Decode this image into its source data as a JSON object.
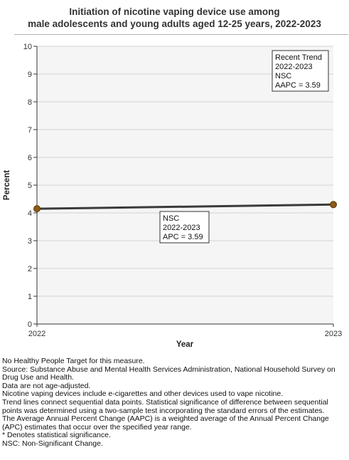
{
  "chart_data": {
    "type": "line",
    "title_line1": "Initiation of nicotine vaping device use among",
    "title_line2": "male adolescents and young adults aged 12-25 years, 2022-2023",
    "xlabel": "Year",
    "ylabel": "Percent",
    "xlim": [
      2022,
      2023
    ],
    "ylim": [
      0,
      10
    ],
    "x_ticks": [
      "2022",
      "2023"
    ],
    "y_ticks": [
      "0",
      "1",
      "2",
      "3",
      "4",
      "5",
      "6",
      "7",
      "8",
      "9",
      "10"
    ],
    "grid": true,
    "series": [
      {
        "x": [
          2022,
          2023
        ],
        "values": [
          4.15,
          4.3
        ],
        "color": "#3a3a3a",
        "marker_color": "#8b5a14"
      }
    ],
    "annotations": {
      "recent_trend": [
        "Recent Trend",
        "2022-2023",
        "NSC",
        "AAPC =  3.59"
      ],
      "segment": [
        "NSC",
        "2022-2023",
        "APC =  3.59"
      ]
    }
  },
  "notes": [
    "No Healthy People Target for this measure.",
    "Source: Substance Abuse and Mental Health Services Administration, National Household Survey on Drug Use and Health.",
    "Data are not age-adjusted.",
    "Nicotine vaping devices include e-cigarettes and other devices used to vape nicotine.",
    "Trend lines connect sequential data points. Statistical significance of difference between sequential points was determined using a two-sample test incorporating the standard errors of the estimates.",
    "The Average Annual Percent Change (AAPC) is a weighted average of the Annual Percent Change (APC) estimates that occur over the specified year range.",
    "* Denotes statistical significance.",
    "NSC: Non-Significant Change."
  ]
}
